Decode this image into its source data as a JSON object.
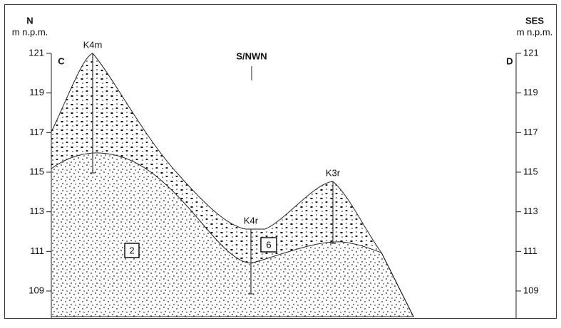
{
  "left": {
    "direction": "N",
    "unit": "m n.p.m.",
    "letter": "C"
  },
  "right": {
    "direction": "SES",
    "unit": "m n.p.m.",
    "letter": "D"
  },
  "section_label": "S/NWN",
  "elevation_ticks": [
    121,
    119,
    117,
    115,
    113,
    111,
    109
  ],
  "boreholes": [
    {
      "label": "K4m"
    },
    {
      "label": "K4r"
    },
    {
      "label": "K3r"
    }
  ],
  "layers": [
    {
      "label": "2"
    },
    {
      "label": "6"
    }
  ]
}
